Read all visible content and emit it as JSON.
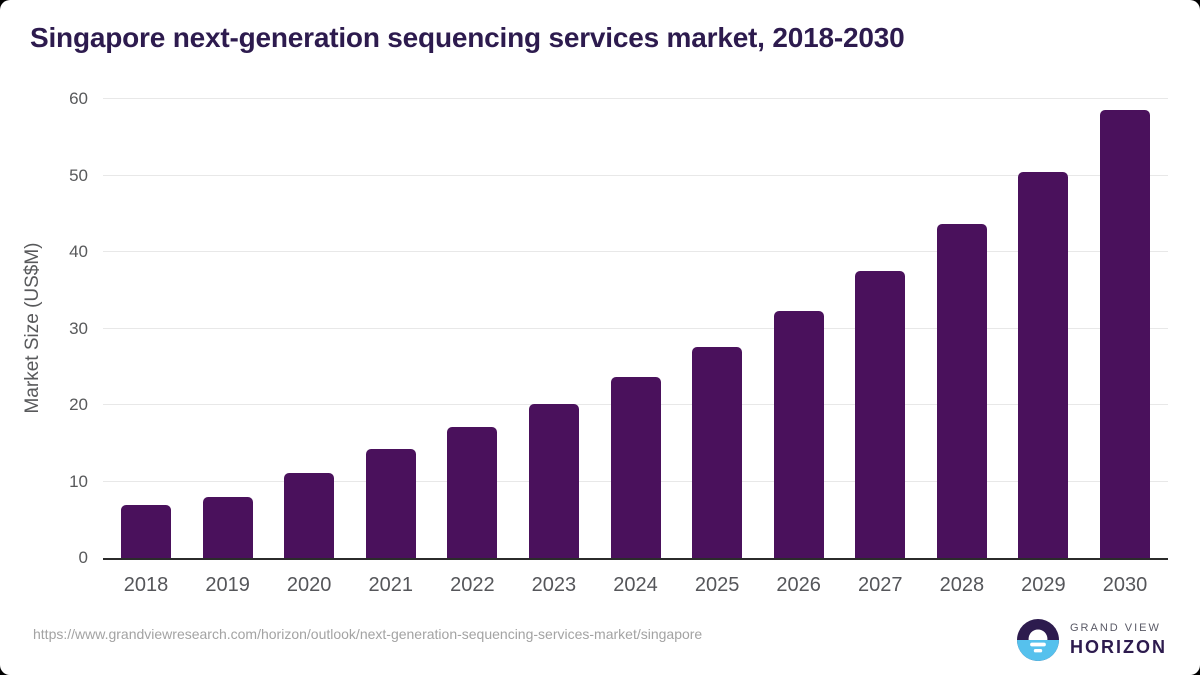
{
  "chart_data": {
    "type": "bar",
    "title": "Singapore next-generation sequencing services market, 2018-2030",
    "categories": [
      "2018",
      "2019",
      "2020",
      "2021",
      "2022",
      "2023",
      "2024",
      "2025",
      "2026",
      "2027",
      "2028",
      "2029",
      "2030"
    ],
    "values": [
      6.9,
      8.0,
      11.1,
      14.3,
      17.1,
      20.1,
      23.7,
      27.6,
      32.3,
      37.5,
      43.6,
      50.4,
      58.5
    ],
    "xlabel": "",
    "ylabel": "Market Size (US$M)",
    "ylim": [
      0,
      60
    ],
    "yticks": [
      0,
      10,
      20,
      30,
      40,
      50,
      60
    ],
    "grid": true,
    "legend": "none",
    "bar_color": "#4a115c"
  },
  "colors": {
    "title_text": "#2d1b4e",
    "axis_text": "#58595b",
    "xlabel_text": "#55565a",
    "gridline": "#e8e8e8",
    "axis_line": "#2b2b2b",
    "url_text": "#a3a3a3",
    "logo_blue": "#56c1ed",
    "logo_dark": "#2d1b4e",
    "background": "#ffffff"
  },
  "footer": {
    "source_url": "https://www.grandviewresearch.com/horizon/outlook/next-generation-sequencing-services-market/singapore",
    "logo": {
      "top_text": "GRAND VIEW",
      "bottom_text": "HORIZON"
    }
  }
}
